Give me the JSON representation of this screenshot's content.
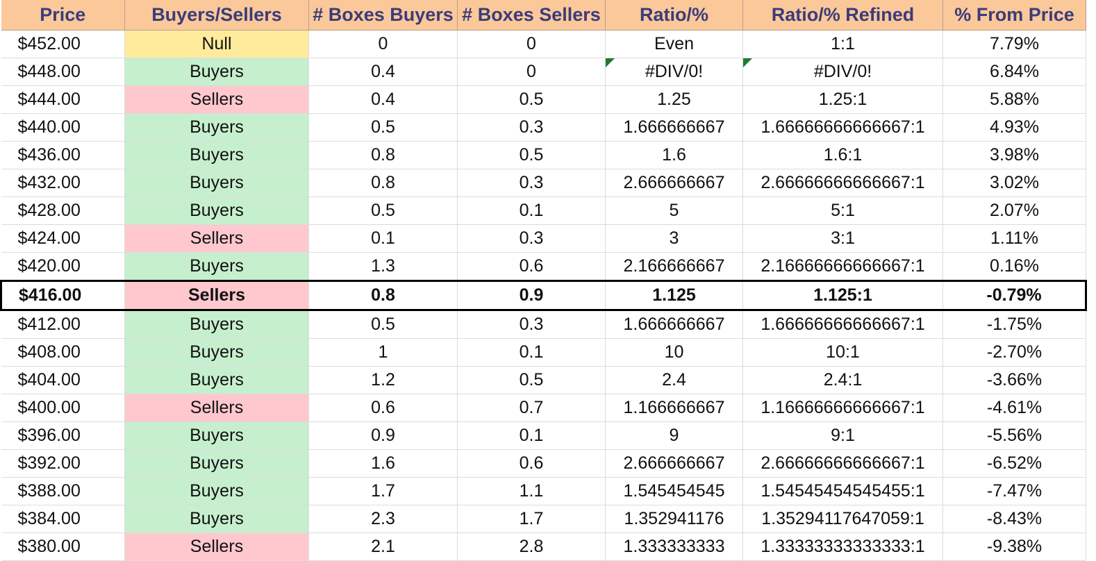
{
  "headers": [
    "Price",
    "Buyers/Sellers",
    "# Boxes Buyers",
    "# Boxes Sellers",
    "Ratio/%",
    "Ratio/% Refined",
    "% From Price"
  ],
  "rows": [
    {
      "price": "$452.00",
      "bs": "Null",
      "bs_type": "null",
      "buyers": "0",
      "sellers": "0",
      "ratio": "Even",
      "refined": "1:1",
      "pct": "7.79%"
    },
    {
      "price": "$448.00",
      "bs": "Buyers",
      "bs_type": "buyers",
      "buyers": "0.4",
      "sellers": "0",
      "ratio": "#DIV/0!",
      "refined": "#DIV/0!",
      "pct": "6.84%",
      "error_flag": true
    },
    {
      "price": "$444.00",
      "bs": "Sellers",
      "bs_type": "sellers",
      "buyers": "0.4",
      "sellers": "0.5",
      "ratio": "1.25",
      "refined": "1.25:1",
      "pct": "5.88%"
    },
    {
      "price": "$440.00",
      "bs": "Buyers",
      "bs_type": "buyers",
      "buyers": "0.5",
      "sellers": "0.3",
      "ratio": "1.666666667",
      "refined": "1.66666666666667:1",
      "pct": "4.93%"
    },
    {
      "price": "$436.00",
      "bs": "Buyers",
      "bs_type": "buyers",
      "buyers": "0.8",
      "sellers": "0.5",
      "ratio": "1.6",
      "refined": "1.6:1",
      "pct": "3.98%"
    },
    {
      "price": "$432.00",
      "bs": "Buyers",
      "bs_type": "buyers",
      "buyers": "0.8",
      "sellers": "0.3",
      "ratio": "2.666666667",
      "refined": "2.66666666666667:1",
      "pct": "3.02%"
    },
    {
      "price": "$428.00",
      "bs": "Buyers",
      "bs_type": "buyers",
      "buyers": "0.5",
      "sellers": "0.1",
      "ratio": "5",
      "refined": "5:1",
      "pct": "2.07%"
    },
    {
      "price": "$424.00",
      "bs": "Sellers",
      "bs_type": "sellers",
      "buyers": "0.1",
      "sellers": "0.3",
      "ratio": "3",
      "refined": "3:1",
      "pct": "1.11%"
    },
    {
      "price": "$420.00",
      "bs": "Buyers",
      "bs_type": "buyers",
      "buyers": "1.3",
      "sellers": "0.6",
      "ratio": "2.166666667",
      "refined": "2.16666666666667:1",
      "pct": "0.16%"
    },
    {
      "price": "$416.00",
      "bs": "Sellers",
      "bs_type": "sellers",
      "buyers": "0.8",
      "sellers": "0.9",
      "ratio": "1.125",
      "refined": "1.125:1",
      "pct": "-0.79%",
      "current": true
    },
    {
      "price": "$412.00",
      "bs": "Buyers",
      "bs_type": "buyers",
      "buyers": "0.5",
      "sellers": "0.3",
      "ratio": "1.666666667",
      "refined": "1.66666666666667:1",
      "pct": "-1.75%"
    },
    {
      "price": "$408.00",
      "bs": "Buyers",
      "bs_type": "buyers",
      "buyers": "1",
      "sellers": "0.1",
      "ratio": "10",
      "refined": "10:1",
      "pct": "-2.70%"
    },
    {
      "price": "$404.00",
      "bs": "Buyers",
      "bs_type": "buyers",
      "buyers": "1.2",
      "sellers": "0.5",
      "ratio": "2.4",
      "refined": "2.4:1",
      "pct": "-3.66%"
    },
    {
      "price": "$400.00",
      "bs": "Sellers",
      "bs_type": "sellers",
      "buyers": "0.6",
      "sellers": "0.7",
      "ratio": "1.166666667",
      "refined": "1.16666666666667:1",
      "pct": "-4.61%"
    },
    {
      "price": "$396.00",
      "bs": "Buyers",
      "bs_type": "buyers",
      "buyers": "0.9",
      "sellers": "0.1",
      "ratio": "9",
      "refined": "9:1",
      "pct": "-5.56%"
    },
    {
      "price": "$392.00",
      "bs": "Buyers",
      "bs_type": "buyers",
      "buyers": "1.6",
      "sellers": "0.6",
      "ratio": "2.666666667",
      "refined": "2.66666666666667:1",
      "pct": "-6.52%"
    },
    {
      "price": "$388.00",
      "bs": "Buyers",
      "bs_type": "buyers",
      "buyers": "1.7",
      "sellers": "1.1",
      "ratio": "1.545454545",
      "refined": "1.54545454545455:1",
      "pct": "-7.47%"
    },
    {
      "price": "$384.00",
      "bs": "Buyers",
      "bs_type": "buyers",
      "buyers": "2.3",
      "sellers": "1.7",
      "ratio": "1.352941176",
      "refined": "1.35294117647059:1",
      "pct": "-8.43%"
    },
    {
      "price": "$380.00",
      "bs": "Sellers",
      "bs_type": "sellers",
      "buyers": "2.1",
      "sellers": "2.8",
      "ratio": "1.333333333",
      "refined": "1.33333333333333:1",
      "pct": "-9.38%"
    }
  ],
  "colors": {
    "header_bg": "#fbc89a",
    "header_text": "#3b3c7a",
    "buyers_bg": "#c6efce",
    "buyers_text": "#1f6b1f",
    "sellers_bg": "#ffc7ce",
    "sellers_text": "#9c0006",
    "null_bg": "#ffeb9c",
    "null_text": "#9c5700"
  }
}
